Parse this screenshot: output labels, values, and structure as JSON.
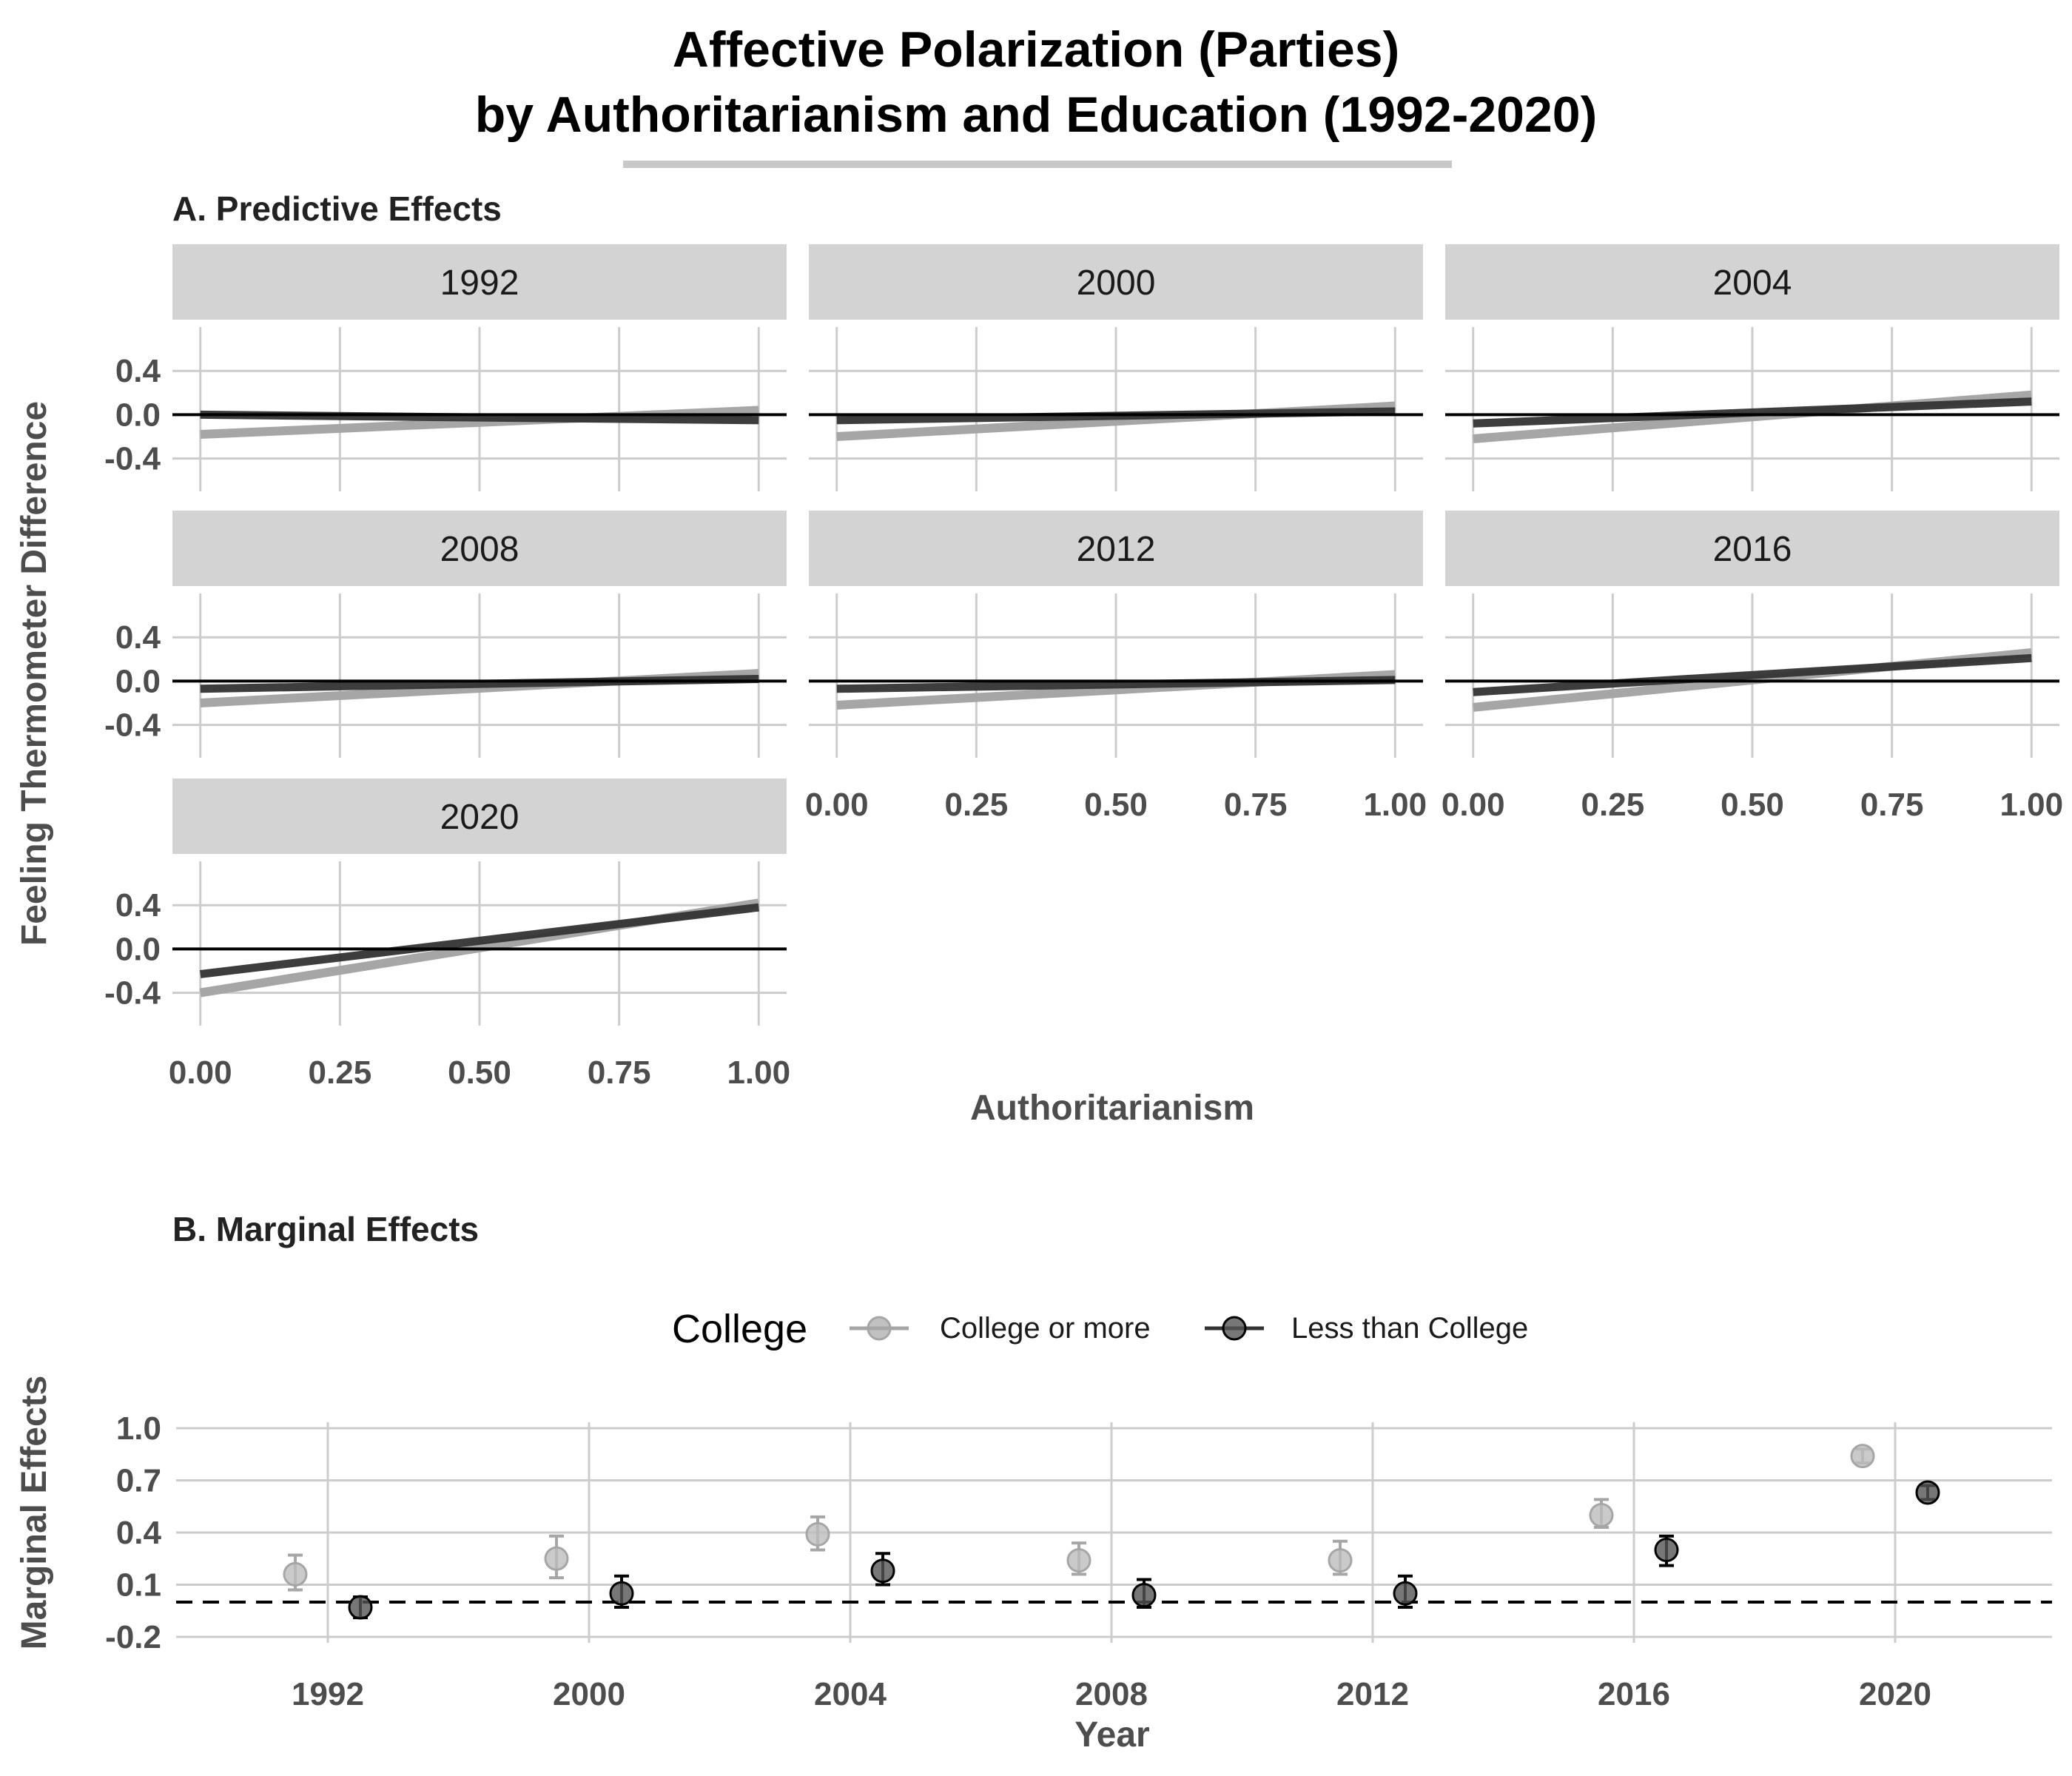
{
  "title_line1": "Affective Polarization (Parties)",
  "title_line2": "by Authoritarianism and Education (1992-2020)",
  "colors": {
    "college": "#a6a6a6",
    "less": "#333333"
  },
  "chart_data": [
    {
      "panel": "A. Predictive Effects",
      "type": "line",
      "xlabel": "Authoritarianism",
      "ylabel": "Feeling Thermometer Difference",
      "xlim": [
        -0.05,
        1.05
      ],
      "ylim": [
        -0.7,
        0.8
      ],
      "x_ticks": [
        0,
        0.25,
        0.5,
        0.75,
        1
      ],
      "x_tick_labels": [
        "0.00",
        "0.25",
        "0.50",
        "0.75",
        "1.00"
      ],
      "y_ticks": [
        -0.4,
        0,
        0.4
      ],
      "y_tick_labels": [
        "-0.4",
        "0.0",
        "0.4"
      ],
      "reference_line_y": 0,
      "facets": [
        {
          "label": "1992",
          "college": [
            -0.18,
            0.04
          ],
          "less": [
            0.0,
            -0.05
          ]
        },
        {
          "label": "2000",
          "college": [
            -0.2,
            0.08
          ],
          "less": [
            -0.05,
            0.03
          ]
        },
        {
          "label": "2004",
          "college": [
            -0.22,
            0.18
          ],
          "less": [
            -0.08,
            0.12
          ]
        },
        {
          "label": "2008",
          "college": [
            -0.2,
            0.07
          ],
          "less": [
            -0.07,
            0.02
          ]
        },
        {
          "label": "2012",
          "college": [
            -0.22,
            0.06
          ],
          "less": [
            -0.07,
            0.01
          ]
        },
        {
          "label": "2016",
          "college": [
            -0.24,
            0.26
          ],
          "less": [
            -0.1,
            0.21
          ]
        },
        {
          "label": "2020",
          "college": [
            -0.4,
            0.42
          ],
          "less": [
            -0.23,
            0.38
          ]
        }
      ]
    },
    {
      "panel": "B. Marginal Effects",
      "type": "scatter",
      "xlabel": "Year",
      "ylabel": "Marginal Effects",
      "ylim": [
        -0.2,
        1.0
      ],
      "y_ticks": [
        -0.2,
        0.1,
        0.4,
        0.7,
        1.0
      ],
      "y_tick_labels": [
        "-0.2",
        "0.1",
        "0.4",
        "0.7",
        "1.0"
      ],
      "categories": [
        "1992",
        "2000",
        "2004",
        "2008",
        "2012",
        "2016",
        "2020"
      ],
      "reference_line_y": 0,
      "legend_title": "College",
      "legend_position": "top",
      "series": [
        {
          "name": "College or more",
          "values": [
            0.16,
            0.25,
            0.39,
            0.24,
            0.24,
            0.5,
            0.84
          ],
          "lower": [
            0.07,
            0.14,
            0.3,
            0.16,
            0.16,
            0.43,
            0.8
          ],
          "upper": [
            0.27,
            0.38,
            0.49,
            0.34,
            0.35,
            0.59,
            0.88
          ]
        },
        {
          "name": "Less than College",
          "values": [
            -0.03,
            0.05,
            0.18,
            0.04,
            0.05,
            0.3,
            0.63
          ],
          "lower": [
            -0.09,
            -0.03,
            0.1,
            -0.03,
            -0.03,
            0.21,
            0.59
          ],
          "upper": [
            0.03,
            0.15,
            0.28,
            0.13,
            0.15,
            0.38,
            0.67
          ]
        }
      ]
    }
  ]
}
